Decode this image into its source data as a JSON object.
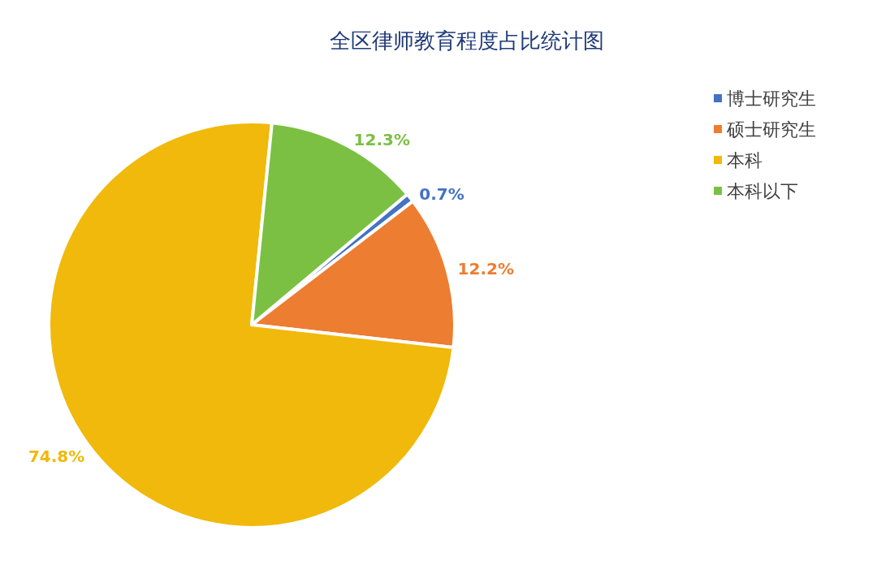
{
  "chart_data": {
    "type": "pie",
    "title": "全区律师教育程度占比统计图",
    "categories": [
      "博士研究生",
      "硕士研究生",
      "本科",
      "本科以下"
    ],
    "values": [
      0.7,
      12.2,
      74.8,
      12.3
    ],
    "value_labels": [
      "0.7%",
      "12.2%",
      "74.8%",
      "12.3%"
    ],
    "colors": [
      "#4472c4",
      "#ed7d31",
      "#f0b90b",
      "#7bc043"
    ],
    "legend": "top right"
  }
}
